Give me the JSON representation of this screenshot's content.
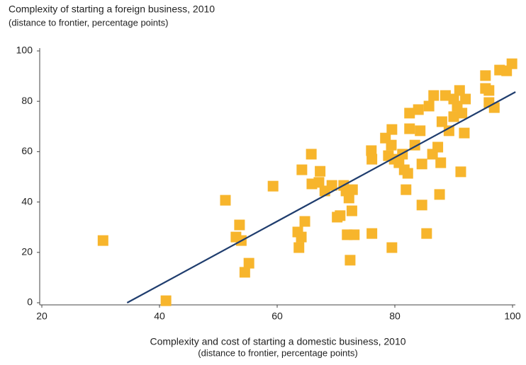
{
  "chart_data": {
    "type": "scatter",
    "title": "Complexity of starting a foreign business, 2010",
    "subtitle": "(distance to frontier, percentage points)",
    "x_label": "Complexity and cost of starting a domestic business, 2010",
    "x_sublabel": "(distance to frontier, percentage points)",
    "xlim": [
      20,
      100
    ],
    "xticks": [
      20,
      40,
      60,
      80,
      100
    ],
    "ylim": [
      0,
      100
    ],
    "yticks": [
      0,
      20,
      40,
      60,
      80,
      100
    ],
    "color": "#f7b52c",
    "trend_color": "#1f3d6e",
    "x": [
      30.4,
      41.1,
      51.2,
      59.3,
      53.0,
      53.6,
      53.9,
      54.5,
      55.2,
      63.5,
      63.7,
      64.1,
      64.7,
      64.2,
      65.8,
      65.9,
      67.1,
      67.3,
      68.1,
      69.3,
      70.2,
      70.7,
      71.3,
      71.7,
      71.9,
      72.2,
      72.4,
      72.7,
      72.8,
      73.1,
      76.0,
      76.1,
      76.1,
      78.4,
      78.9,
      79.4,
      79.5,
      79.5,
      79.9,
      80.7,
      81.3,
      81.6,
      81.9,
      82.2,
      82.5,
      82.5,
      83.4,
      84.0,
      84.3,
      84.6,
      84.6,
      85.4,
      85.8,
      86.4,
      86.6,
      87.3,
      87.6,
      87.8,
      88.0,
      88.6,
      89.2,
      90.0,
      90.0,
      90.6,
      91.0,
      91.2,
      91.4,
      91.8,
      92.0,
      95.4,
      95.4,
      96.0,
      96.0,
      96.9,
      97.8,
      99.0,
      99.9
    ],
    "y": [
      24.7,
      0.8,
      40.7,
      46.3,
      26.1,
      30.9,
      24.7,
      12.1,
      15.7,
      28.1,
      21.9,
      26.1,
      32.3,
      52.8,
      59.0,
      47.2,
      47.8,
      52.2,
      44.4,
      46.6,
      34.0,
      34.6,
      46.6,
      44.4,
      27.0,
      41.6,
      16.9,
      36.5,
      44.9,
      27.0,
      60.4,
      57.0,
      27.5,
      65.4,
      58.4,
      62.6,
      68.8,
      21.9,
      57.0,
      55.6,
      59.0,
      52.8,
      44.9,
      51.4,
      75.3,
      69.1,
      62.6,
      76.7,
      68.3,
      55.1,
      38.8,
      27.5,
      78.1,
      59.0,
      82.3,
      61.8,
      43.0,
      55.6,
      71.9,
      82.3,
      68.3,
      80.9,
      73.9,
      78.1,
      84.3,
      52.0,
      75.3,
      67.4,
      80.9,
      90.2,
      85.1,
      84.3,
      79.5,
      77.5,
      92.4,
      92.1,
      94.9
    ],
    "trend_line": {
      "x": [
        34.5,
        100.5
      ],
      "y": [
        0,
        83.7
      ]
    }
  }
}
